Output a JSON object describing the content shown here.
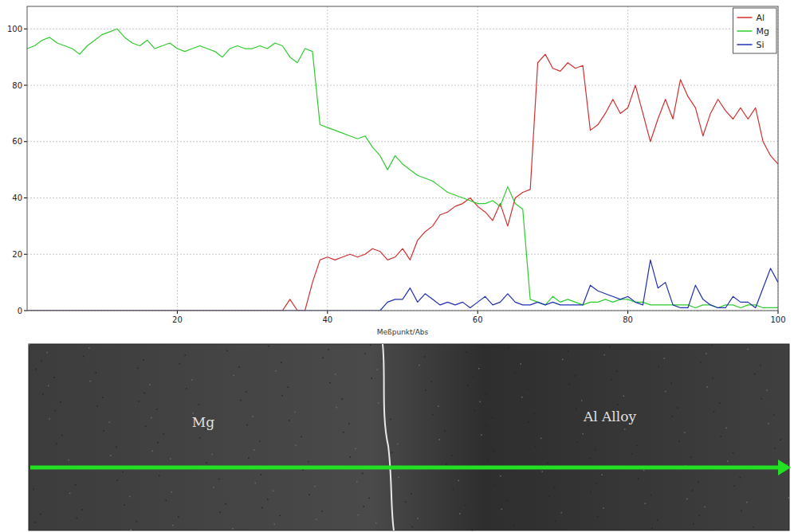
{
  "chart_data": {
    "type": "line",
    "x_label": "Meßpunkt/Abs",
    "x": [
      0,
      1,
      2,
      3,
      4,
      5,
      6,
      7,
      8,
      9,
      10,
      11,
      12,
      13,
      14,
      15,
      16,
      17,
      18,
      19,
      20,
      21,
      22,
      23,
      24,
      25,
      26,
      27,
      28,
      29,
      30,
      31,
      32,
      33,
      34,
      35,
      36,
      37,
      38,
      39,
      40,
      41,
      42,
      43,
      44,
      45,
      46,
      47,
      48,
      49,
      50,
      51,
      52,
      53,
      54,
      55,
      56,
      57,
      58,
      59,
      60,
      61,
      62,
      63,
      64,
      65,
      66,
      67,
      68,
      69,
      70,
      71,
      72,
      73,
      74,
      75,
      76,
      77,
      78,
      79,
      80,
      81,
      82,
      83,
      84,
      85,
      86,
      87,
      88,
      89,
      90,
      91,
      92,
      93,
      94,
      95,
      96,
      97,
      98,
      99,
      100
    ],
    "series": [
      {
        "name": "Al",
        "color": "#d03030",
        "values": [
          0,
          0,
          0,
          0,
          0,
          0,
          0,
          0,
          0,
          0,
          0,
          0,
          0,
          0,
          0,
          0,
          0,
          0,
          0,
          0,
          0,
          0,
          0,
          0,
          0,
          0,
          0,
          0,
          0,
          0,
          0,
          0,
          0,
          0,
          0,
          4,
          0,
          0,
          10,
          18,
          19,
          18,
          19,
          20,
          19,
          20,
          22,
          21,
          18,
          19,
          22,
          18,
          25,
          28,
          30,
          34,
          35,
          37,
          38,
          40,
          37,
          35,
          32,
          38,
          30,
          40,
          42,
          43,
          88,
          91,
          86,
          85,
          88,
          86,
          87,
          64,
          66,
          70,
          75,
          70,
          72,
          80,
          70,
          60,
          68,
          75,
          68,
          82,
          76,
          72,
          62,
          70,
          75,
          71,
          68,
          72,
          68,
          72,
          60,
          55,
          52
        ]
      },
      {
        "name": "Mg",
        "color": "#2ecc2e",
        "values": [
          93,
          94,
          96,
          97,
          95,
          94,
          93,
          91,
          94,
          96,
          98,
          99,
          100,
          97,
          95,
          94,
          96,
          93,
          94,
          95,
          93,
          92,
          93,
          94,
          93,
          92,
          90,
          93,
          94,
          93,
          93,
          94,
          93,
          95,
          94,
          90,
          88,
          93,
          92,
          66,
          65,
          64,
          63,
          62,
          61,
          62,
          58,
          55,
          50,
          55,
          52,
          50,
          48,
          47,
          46,
          44,
          42,
          41,
          40,
          39,
          38,
          38,
          39,
          37,
          44,
          38,
          36,
          4,
          3,
          2,
          5,
          3,
          4,
          3,
          2,
          3,
          3,
          4,
          3,
          4,
          4,
          3,
          3,
          2,
          2,
          2,
          2,
          2,
          2,
          1,
          2,
          2,
          1,
          2,
          2,
          1,
          2,
          2,
          1,
          1,
          1
        ]
      },
      {
        "name": "Si",
        "color": "#2030b0",
        "values": [
          0,
          0,
          0,
          0,
          0,
          0,
          0,
          0,
          0,
          0,
          0,
          0,
          0,
          0,
          0,
          0,
          0,
          0,
          0,
          0,
          0,
          0,
          0,
          0,
          0,
          0,
          0,
          0,
          0,
          0,
          0,
          0,
          0,
          0,
          0,
          0,
          0,
          0,
          0,
          0,
          0,
          0,
          0,
          0,
          0,
          0,
          0,
          0,
          3,
          4,
          4,
          8,
          3,
          6,
          4,
          2,
          3,
          2,
          3,
          1,
          3,
          5,
          2,
          3,
          6,
          3,
          2,
          2,
          3,
          2,
          3,
          2,
          2,
          2,
          2,
          9,
          7,
          6,
          5,
          4,
          5,
          3,
          2,
          18,
          8,
          10,
          2,
          1,
          1,
          9,
          4,
          2,
          1,
          1,
          5,
          3,
          3,
          1,
          8,
          15,
          10
        ]
      }
    ],
    "xlim": [
      0,
      100
    ],
    "xticks": [
      20,
      40,
      60,
      80,
      100
    ],
    "ylim": [
      0,
      108
    ],
    "yticks": [
      0,
      20,
      40,
      60,
      80,
      100
    ],
    "grid": true,
    "legend": "upper right"
  },
  "micrograph": {
    "labels": [
      "Mg",
      "Al Alloy"
    ]
  }
}
